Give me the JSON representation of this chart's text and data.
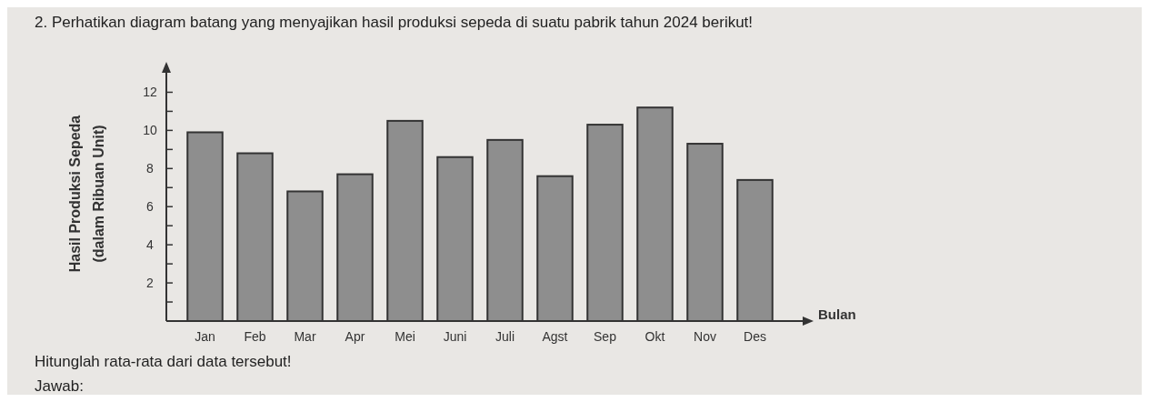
{
  "chart_data": {
    "type": "bar",
    "title": "2. Perhatikan diagram batang yang menyajikan hasil produksi sepeda di suatu pabrik tahun 2024 berikut!",
    "xlabel": "Bulan",
    "ylabel": "Hasil Produksi Sepeda\n(dalam Ribuan Unit)",
    "categories": [
      "Jan",
      "Feb",
      "Mar",
      "Apr",
      "Mei",
      "Juni",
      "Juli",
      "Agst",
      "Sep",
      "Okt",
      "Nov",
      "Des"
    ],
    "values": [
      9.9,
      8.8,
      6.8,
      7.7,
      10.5,
      8.6,
      9.5,
      7.6,
      10.3,
      11.2,
      9.3,
      7.4
    ],
    "color": "#8e8e8e",
    "ylim": [
      0,
      13.5
    ],
    "yticks": [
      {
        "value": 1,
        "label": null
      },
      2,
      {
        "value": 3,
        "label": null
      },
      4,
      {
        "value": 5,
        "label": null
      },
      6,
      {
        "value": 7,
        "label": null
      },
      8,
      {
        "value": 9,
        "label": null
      },
      10,
      {
        "value": 11,
        "label": null
      },
      12
    ],
    "grid": false,
    "annotations": [
      "Hitunglah rata-rata dari data tersebut!",
      "Jawab:"
    ]
  }
}
